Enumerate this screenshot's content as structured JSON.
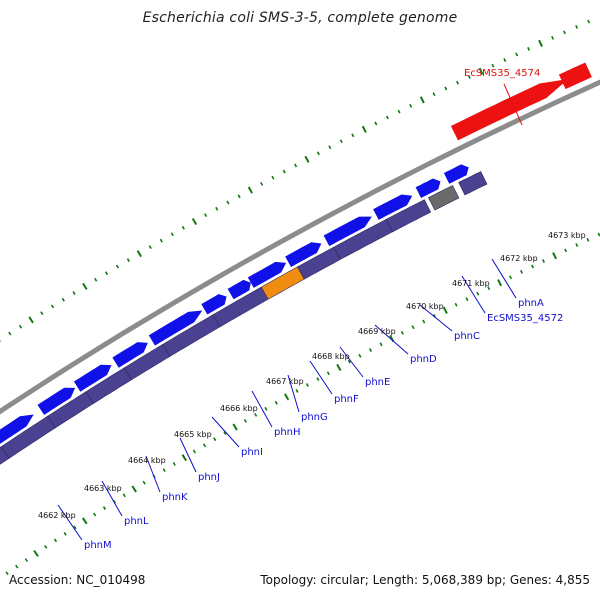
{
  "title": "Escherichia coli SMS-3-5, complete genome",
  "footer": {
    "accession": "Accession: NC_010498",
    "summary": "Topology: circular; Length: 5,068,389 bp; Genes: 4,855"
  },
  "colors": {
    "background": "#ffffff",
    "backbone": "#8c8c8c",
    "forward_gene": "#1010e8",
    "reverse_gene": "#4a4290",
    "highlight_gene": "#f08c10",
    "pseudo_gene": "#6a6a6a",
    "other_strand_gene": "#ee1111",
    "tick": "#117711",
    "gene_label": "#1010cc",
    "highlight_label": "#dd1111"
  },
  "ruler": {
    "unit": "kbp",
    "ticks": [
      "4662 kbp",
      "4663 kbp",
      "4664 kbp",
      "4665 kbp",
      "4666 kbp",
      "4667 kbp",
      "4668 kbp",
      "4669 kbp",
      "4670 kbp",
      "4671 kbp",
      "4672 kbp",
      "4673 kbp"
    ]
  },
  "gene_labels": [
    {
      "name": "phnM",
      "color": "blue"
    },
    {
      "name": "phnL",
      "color": "blue"
    },
    {
      "name": "phnK",
      "color": "blue"
    },
    {
      "name": "phnJ",
      "color": "blue"
    },
    {
      "name": "phnI",
      "color": "blue"
    },
    {
      "name": "phnH",
      "color": "blue"
    },
    {
      "name": "phnG",
      "color": "blue"
    },
    {
      "name": "phnF",
      "color": "blue"
    },
    {
      "name": "phnE",
      "color": "blue"
    },
    {
      "name": "phnD",
      "color": "blue"
    },
    {
      "name": "phnC",
      "color": "blue"
    },
    {
      "name": "EcSMS35_4572",
      "color": "blue"
    },
    {
      "name": "phnA",
      "color": "blue"
    },
    {
      "name": "EcSMS35_4574",
      "color": "red"
    }
  ]
}
